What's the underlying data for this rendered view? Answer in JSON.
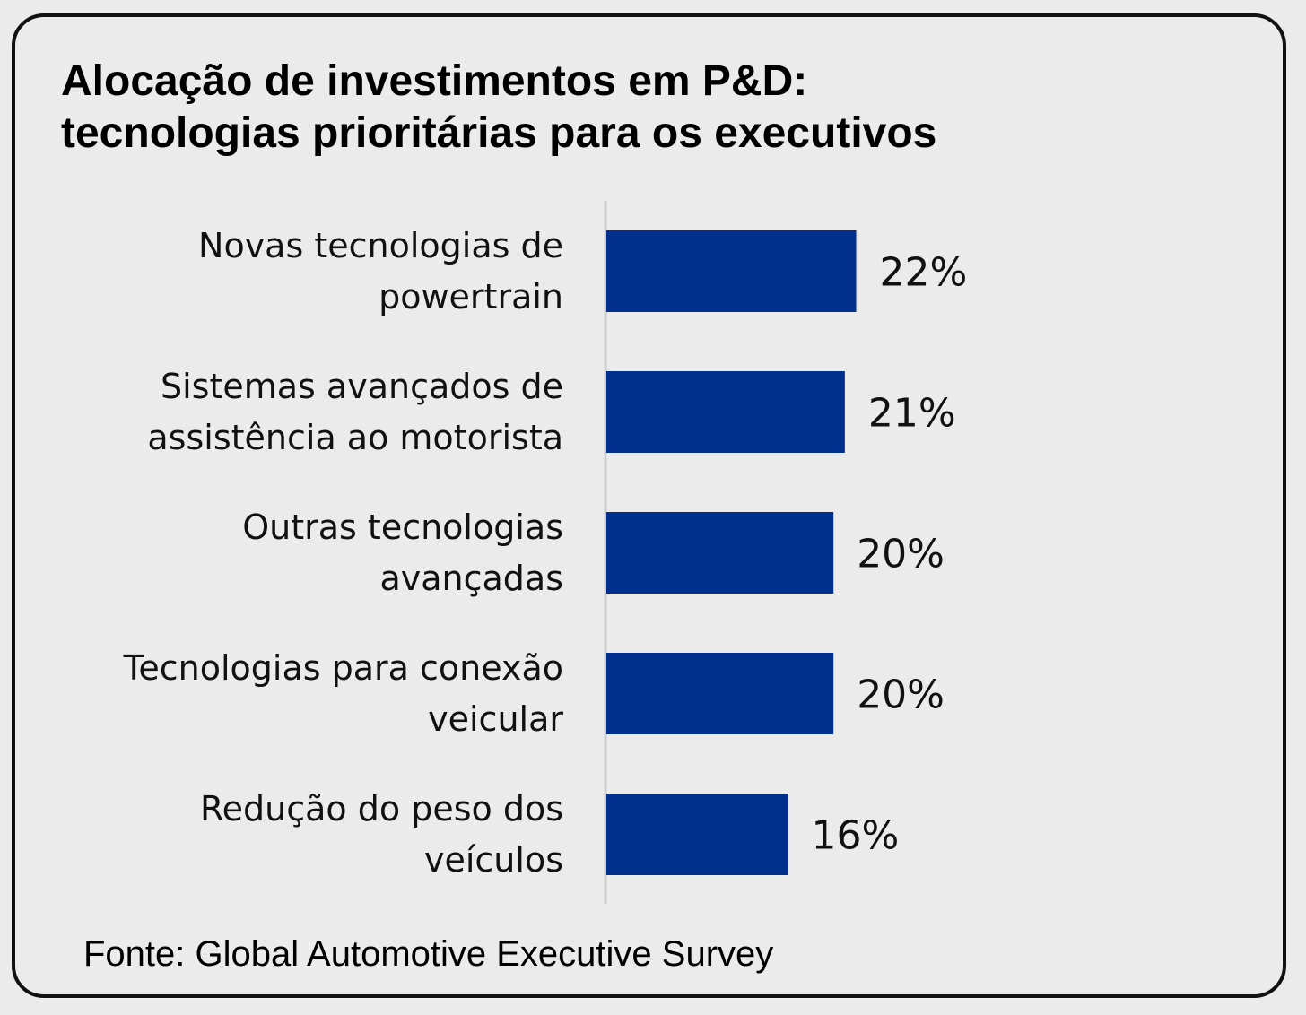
{
  "chart_data": {
    "type": "bar",
    "orientation": "horizontal",
    "title_lines": [
      "Alocação de investimentos em P&D:",
      "tecnologias prioritárias para os executivos"
    ],
    "categories": [
      [
        "Novas tecnologias de",
        "powertrain"
      ],
      [
        "Sistemas avançados de",
        "assistência ao motorista"
      ],
      [
        "Outras tecnologias",
        "avançadas"
      ],
      [
        "Tecnologias para conexão",
        "veicular"
      ],
      [
        "Redução do peso dos",
        "veículos"
      ]
    ],
    "values": [
      22,
      21,
      20,
      20,
      16
    ],
    "value_labels": [
      "22%",
      "21%",
      "20%",
      "20%",
      "16%"
    ],
    "unit": "%",
    "xlim": [
      0,
      22
    ],
    "bar_color": "#012f8e",
    "axis_color": "#cccccc",
    "grid": false,
    "legend": "none"
  },
  "source": "Fonte: Global Automotive Executive Survey"
}
